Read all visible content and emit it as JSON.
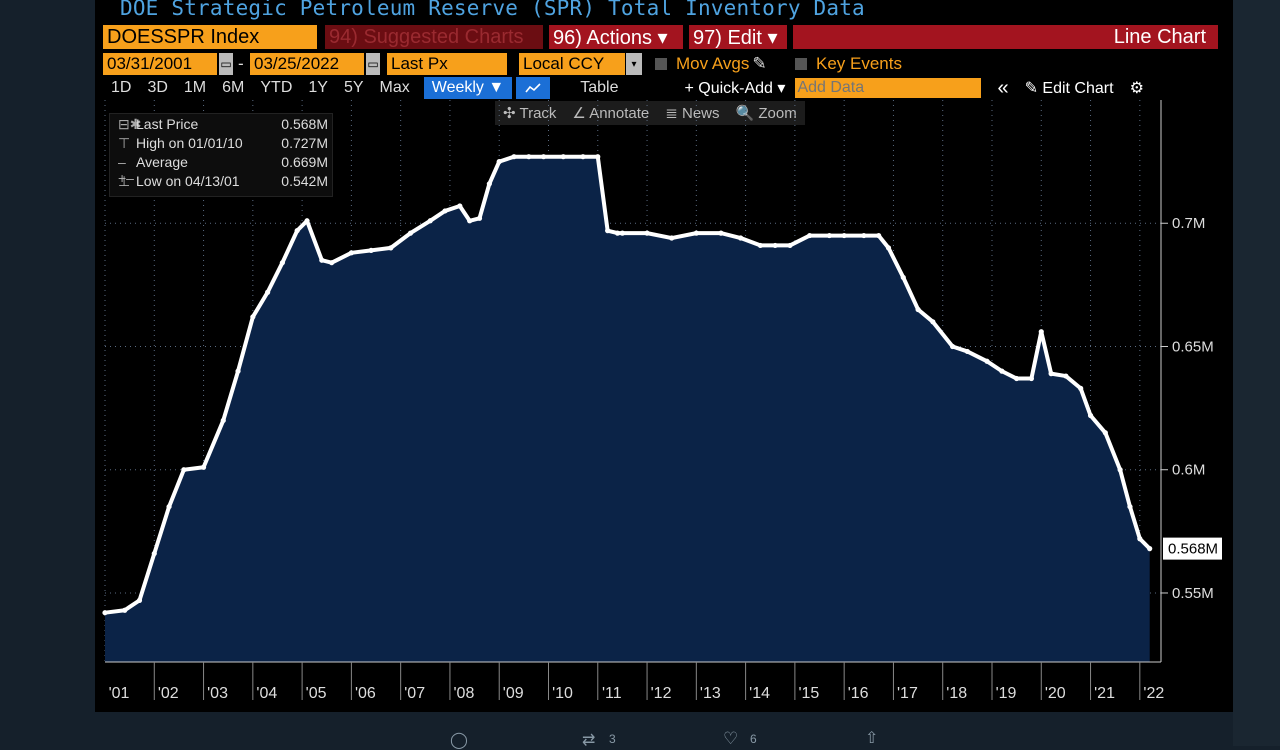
{
  "header": {
    "title": "DOE Strategic Petroleum Reserve (SPR) Total Inventory Data"
  },
  "toolbar": {
    "ticker": "DOESSPR Index",
    "suggested": "94) Suggested Charts",
    "actions": "96) Actions ▾",
    "edit": "97) Edit ▾",
    "chart_type": "Line Chart",
    "start_date": "03/31/2001",
    "end_date": "03/25/2022",
    "date_sep": "-",
    "field": "Last Px",
    "currency": "Local CCY",
    "mov_avgs": "Mov Avgs",
    "key_events": "Key Events",
    "ranges": [
      "1D",
      "3D",
      "1M",
      "6M",
      "YTD",
      "1Y",
      "5Y",
      "Max"
    ],
    "frequency": "Weekly ▼",
    "table": "Table",
    "quick_add": "+ Quick-Add ▾",
    "add_data_placeholder": "Add Data",
    "collapse": "«",
    "edit_chart": "✎ Edit Chart",
    "settings": "⚙",
    "track": "✣ Track",
    "annotate": "∠ Annotate",
    "news": "≣ News",
    "zoom": "🔍 Zoom"
  },
  "legend": {
    "last_label": "Last Price",
    "last_value": "0.568M",
    "high_label": "High on 01/01/10",
    "high_value": "0.727M",
    "avg_label": "Average",
    "avg_value": "0.669M",
    "low_label": "Low on 04/13/01",
    "low_value": "0.542M"
  },
  "social": {
    "retweets": "3",
    "likes": "6"
  },
  "colors": {
    "area": "#0b2347",
    "line": "#ffffff",
    "accent_orange": "#f7a01b",
    "accent_red": "#a3141f",
    "select_blue": "#1b6fd6"
  },
  "chart_data": {
    "type": "area",
    "title": "DOE Strategic Petroleum Reserve (SPR) Total Inventory Data",
    "ylim": [
      0.522,
      0.75
    ],
    "yticks": [
      0.55,
      0.6,
      0.65,
      0.7
    ],
    "ytick_labels": [
      "0.55M",
      "0.6M",
      "0.65M",
      "0.7M"
    ],
    "last_value_label": "0.568M",
    "xlim": [
      2001.0,
      2022.45
    ],
    "xticks": [
      2001.0,
      2002.0,
      2003.0,
      2004.0,
      2005.0,
      2006.0,
      2007.0,
      2008.0,
      2009.0,
      2010.0,
      2011.0,
      2012.0,
      2013.0,
      2014.0,
      2015.0,
      2016.0,
      2017.0,
      2018.0,
      2019.0,
      2020.0,
      2021.0,
      2022.0
    ],
    "xtick_labels": [
      "'01",
      "'02",
      "'03",
      "'04",
      "'05",
      "'06",
      "'07",
      "'08",
      "'09",
      "'10",
      "'11",
      "'12",
      "'13",
      "'14",
      "'15",
      "'16",
      "'17",
      "'18",
      "'19",
      "'20",
      "'21",
      "'22"
    ],
    "grid": true,
    "series": [
      {
        "x": [
          2001.0,
          2001.4,
          2001.7,
          2002.0,
          2002.3,
          2002.6,
          2003.0,
          2003.4,
          2003.7,
          2004.0,
          2004.3,
          2004.6,
          2004.9,
          2005.1,
          2005.4,
          2005.6,
          2006.0,
          2006.4,
          2006.8,
          2007.2,
          2007.6,
          2007.9,
          2008.2,
          2008.4,
          2008.6,
          2008.8,
          2009.0,
          2009.3,
          2009.6,
          2009.9,
          2010.3,
          2010.7,
          2011.0,
          2011.2,
          2011.4,
          2011.5,
          2012.0,
          2012.5,
          2013.0,
          2013.5,
          2013.9,
          2014.3,
          2014.6,
          2014.9,
          2015.3,
          2015.7,
          2016.0,
          2016.4,
          2016.7,
          2016.9,
          2017.2,
          2017.5,
          2017.8,
          2018.2,
          2018.5,
          2018.9,
          2019.2,
          2019.5,
          2019.8,
          2020.0,
          2020.2,
          2020.5,
          2020.8,
          2021.0,
          2021.3,
          2021.6,
          2021.8,
          2022.0,
          2022.2
        ],
        "y": [
          0.542,
          0.543,
          0.547,
          0.566,
          0.585,
          0.6,
          0.601,
          0.62,
          0.64,
          0.662,
          0.672,
          0.684,
          0.697,
          0.701,
          0.685,
          0.684,
          0.688,
          0.689,
          0.69,
          0.696,
          0.701,
          0.705,
          0.707,
          0.701,
          0.702,
          0.716,
          0.725,
          0.727,
          0.727,
          0.727,
          0.727,
          0.727,
          0.727,
          0.697,
          0.696,
          0.696,
          0.696,
          0.694,
          0.696,
          0.696,
          0.694,
          0.691,
          0.691,
          0.691,
          0.695,
          0.695,
          0.695,
          0.695,
          0.695,
          0.69,
          0.678,
          0.665,
          0.66,
          0.65,
          0.648,
          0.644,
          0.64,
          0.637,
          0.637,
          0.656,
          0.639,
          0.638,
          0.633,
          0.622,
          0.615,
          0.6,
          0.585,
          0.572,
          0.568
        ]
      }
    ]
  }
}
